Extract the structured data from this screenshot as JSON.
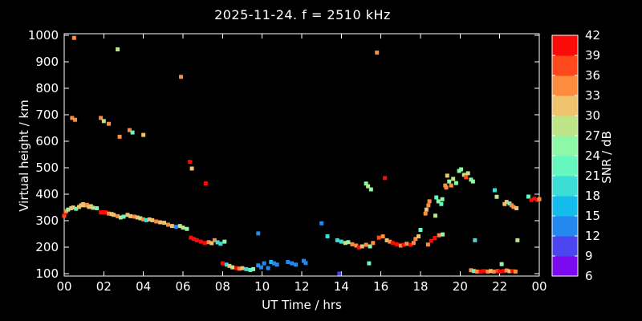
{
  "title": "2025-11-24. f = 2510 kHz",
  "palette": {
    "background": "#000000",
    "foreground": "#ffffff"
  },
  "chart_data": {
    "type": "scatter",
    "title": "2025-11-24. f = 2510 kHz",
    "xlabel": "UT Time / hrs",
    "ylabel": "Virtual height / km",
    "xlim": [
      0,
      24
    ],
    "ylim": [
      90,
      1005
    ],
    "grid": false,
    "x_ticks": [
      {
        "t": 0,
        "label": "00"
      },
      {
        "t": 2,
        "label": "02"
      },
      {
        "t": 4,
        "label": "04"
      },
      {
        "t": 6,
        "label": "06"
      },
      {
        "t": 8,
        "label": "08"
      },
      {
        "t": 10,
        "label": "10"
      },
      {
        "t": 12,
        "label": "12"
      },
      {
        "t": 14,
        "label": "14"
      },
      {
        "t": 16,
        "label": "16"
      },
      {
        "t": 18,
        "label": "18"
      },
      {
        "t": 20,
        "label": "20"
      },
      {
        "t": 22,
        "label": "22"
      },
      {
        "t": 24,
        "label": "00"
      }
    ],
    "y_ticks": [
      100,
      200,
      300,
      400,
      500,
      600,
      700,
      800,
      900,
      1000
    ],
    "colorbar": {
      "label": "SNR / dB",
      "ticks": [
        6,
        9,
        12,
        15,
        18,
        21,
        24,
        27,
        30,
        33,
        36,
        39,
        42
      ],
      "segment_colors": [
        "#7B0AF0",
        "#4B46F0",
        "#2388F0",
        "#13BCEC",
        "#3BDDD4",
        "#65F8BE",
        "#8DF8A7",
        "#BDE487",
        "#EFC26E",
        "#FE8C3F",
        "#FE491D",
        "#FB0B07"
      ],
      "position": "right"
    },
    "point_format": "[ut_hours, virtual_height_km, snr_db]",
    "points": [
      [
        0.0,
        318,
        37
      ],
      [
        0.05,
        330,
        40
      ],
      [
        0.1,
        336,
        34
      ],
      [
        0.2,
        342,
        25
      ],
      [
        0.35,
        347,
        31
      ],
      [
        0.45,
        350,
        31
      ],
      [
        0.6,
        345,
        22
      ],
      [
        0.75,
        352,
        31
      ],
      [
        0.85,
        358,
        31
      ],
      [
        0.95,
        362,
        31
      ],
      [
        1.05,
        358,
        31
      ],
      [
        1.15,
        360,
        34
      ],
      [
        1.25,
        352,
        31
      ],
      [
        1.35,
        355,
        31
      ],
      [
        1.45,
        349,
        28
      ],
      [
        1.65,
        347,
        25
      ],
      [
        1.85,
        332,
        40
      ],
      [
        1.95,
        332,
        40
      ],
      [
        2.1,
        332,
        40
      ],
      [
        2.25,
        327,
        34
      ],
      [
        2.4,
        325,
        31
      ],
      [
        2.5,
        322,
        31
      ],
      [
        2.7,
        317,
        34
      ],
      [
        2.85,
        312,
        28
      ],
      [
        3.0,
        315,
        22
      ],
      [
        3.2,
        322,
        31
      ],
      [
        3.35,
        317,
        31
      ],
      [
        3.55,
        315,
        34
      ],
      [
        3.7,
        312,
        31
      ],
      [
        3.85,
        309,
        28
      ],
      [
        4.0,
        305,
        34
      ],
      [
        4.15,
        302,
        19
      ],
      [
        4.3,
        305,
        31
      ],
      [
        4.45,
        302,
        31
      ],
      [
        4.65,
        297,
        34
      ],
      [
        4.85,
        294,
        31
      ],
      [
        5.05,
        292,
        31
      ],
      [
        5.25,
        285,
        34
      ],
      [
        5.45,
        280,
        31
      ],
      [
        5.65,
        277,
        13
      ],
      [
        5.85,
        280,
        28
      ],
      [
        6.0,
        274,
        28
      ],
      [
        6.2,
        269,
        25
      ],
      [
        6.4,
        236,
        40
      ],
      [
        6.55,
        231,
        40
      ],
      [
        6.7,
        226,
        40
      ],
      [
        6.9,
        221,
        40
      ],
      [
        7.1,
        216,
        40
      ],
      [
        7.3,
        219,
        34
      ],
      [
        7.45,
        215,
        31
      ],
      [
        7.6,
        226,
        34
      ],
      [
        7.75,
        218,
        19
      ],
      [
        7.9,
        213,
        19
      ],
      [
        8.1,
        221,
        25
      ],
      [
        0.4,
        688,
        34
      ],
      [
        0.55,
        681,
        34
      ],
      [
        1.85,
        688,
        34
      ],
      [
        2.0,
        676,
        28
      ],
      [
        2.25,
        666,
        34
      ],
      [
        2.8,
        617,
        34
      ],
      [
        3.3,
        642,
        34
      ],
      [
        3.45,
        633,
        22
      ],
      [
        4.0,
        624,
        31
      ],
      [
        6.35,
        522,
        40
      ],
      [
        6.45,
        497,
        31
      ],
      [
        7.15,
        441,
        40
      ],
      [
        0.5,
        990,
        34
      ],
      [
        2.7,
        947,
        28
      ],
      [
        5.9,
        843,
        34
      ],
      [
        15.8,
        935,
        34
      ],
      [
        8.0,
        139,
        40
      ],
      [
        8.2,
        134,
        19
      ],
      [
        8.35,
        129,
        31
      ],
      [
        8.5,
        124,
        28
      ],
      [
        8.7,
        121,
        40
      ],
      [
        8.85,
        119,
        34
      ],
      [
        9.0,
        121,
        31
      ],
      [
        9.2,
        117,
        19
      ],
      [
        9.4,
        114,
        22
      ],
      [
        9.55,
        117,
        25
      ],
      [
        9.8,
        131,
        13
      ],
      [
        9.95,
        124,
        13
      ],
      [
        10.1,
        139,
        13
      ],
      [
        10.3,
        121,
        13
      ],
      [
        10.45,
        144,
        16
      ],
      [
        10.6,
        139,
        13
      ],
      [
        10.75,
        134,
        13
      ],
      [
        11.3,
        144,
        13
      ],
      [
        11.5,
        139,
        13
      ],
      [
        11.7,
        134,
        13
      ],
      [
        12.1,
        148,
        13
      ],
      [
        12.2,
        140,
        13
      ],
      [
        9.8,
        252,
        13
      ],
      [
        13.0,
        290,
        13
      ],
      [
        13.3,
        241,
        19
      ],
      [
        13.9,
        100,
        10
      ],
      [
        15.4,
        139,
        22
      ],
      [
        16.2,
        461,
        40
      ],
      [
        20.75,
        226,
        19
      ],
      [
        22.9,
        226,
        28
      ],
      [
        22.1,
        136,
        25
      ],
      [
        13.8,
        226,
        19
      ],
      [
        14.0,
        221,
        19
      ],
      [
        14.2,
        216,
        28
      ],
      [
        14.35,
        219,
        25
      ],
      [
        14.55,
        211,
        34
      ],
      [
        14.75,
        206,
        34
      ],
      [
        14.9,
        199,
        40
      ],
      [
        15.05,
        203,
        31
      ],
      [
        15.25,
        209,
        34
      ],
      [
        15.45,
        203,
        25
      ],
      [
        15.6,
        216,
        34
      ],
      [
        15.9,
        236,
        37
      ],
      [
        16.1,
        241,
        34
      ],
      [
        16.3,
        226,
        31
      ],
      [
        16.45,
        221,
        34
      ],
      [
        16.6,
        216,
        40
      ],
      [
        16.8,
        211,
        40
      ],
      [
        17.0,
        206,
        34
      ],
      [
        17.15,
        209,
        40
      ],
      [
        17.3,
        213,
        34
      ],
      [
        17.5,
        209,
        40
      ],
      [
        17.65,
        216,
        34
      ],
      [
        17.75,
        231,
        34
      ],
      [
        17.9,
        241,
        31
      ],
      [
        18.0,
        265,
        22
      ],
      [
        18.38,
        210,
        34
      ],
      [
        18.54,
        224,
        40
      ],
      [
        18.72,
        235,
        40
      ],
      [
        18.94,
        245,
        34
      ],
      [
        19.12,
        248,
        25
      ],
      [
        18.25,
        327,
        34
      ],
      [
        18.3,
        342,
        31
      ],
      [
        18.4,
        358,
        34
      ],
      [
        18.45,
        373,
        34
      ],
      [
        18.75,
        319,
        28
      ],
      [
        18.8,
        388,
        22
      ],
      [
        18.9,
        373,
        25
      ],
      [
        19.05,
        363,
        22
      ],
      [
        19.1,
        381,
        25
      ],
      [
        19.25,
        433,
        34
      ],
      [
        19.3,
        425,
        34
      ],
      [
        19.35,
        470,
        31
      ],
      [
        19.45,
        448,
        25
      ],
      [
        19.55,
        433,
        34
      ],
      [
        19.65,
        458,
        28
      ],
      [
        19.8,
        442,
        25
      ],
      [
        19.95,
        488,
        25
      ],
      [
        20.05,
        494,
        25
      ],
      [
        20.2,
        473,
        28
      ],
      [
        20.3,
        464,
        37
      ],
      [
        20.4,
        479,
        28
      ],
      [
        20.55,
        455,
        25
      ],
      [
        20.65,
        448,
        25
      ],
      [
        15.25,
        440,
        25
      ],
      [
        15.35,
        430,
        28
      ],
      [
        15.5,
        418,
        25
      ],
      [
        21.75,
        415,
        19
      ],
      [
        21.85,
        390,
        28
      ],
      [
        22.25,
        363,
        31
      ],
      [
        22.35,
        371,
        31
      ],
      [
        22.5,
        365,
        22
      ],
      [
        22.6,
        358,
        34
      ],
      [
        22.7,
        352,
        34
      ],
      [
        22.85,
        347,
        31
      ],
      [
        23.45,
        391,
        22
      ],
      [
        23.6,
        378,
        40
      ],
      [
        23.75,
        383,
        40
      ],
      [
        23.9,
        378,
        40
      ],
      [
        24.0,
        381,
        34
      ],
      [
        20.55,
        113,
        34
      ],
      [
        20.7,
        110,
        22
      ],
      [
        20.85,
        108,
        34
      ],
      [
        21.05,
        108,
        40
      ],
      [
        21.2,
        110,
        40
      ],
      [
        21.4,
        108,
        34
      ],
      [
        21.55,
        110,
        31
      ],
      [
        21.7,
        108,
        34
      ],
      [
        21.9,
        110,
        37
      ],
      [
        22.0,
        108,
        40
      ],
      [
        22.2,
        110,
        40
      ],
      [
        22.35,
        112,
        34
      ],
      [
        22.5,
        109,
        31
      ],
      [
        22.65,
        110,
        40
      ],
      [
        22.8,
        108,
        34
      ]
    ]
  }
}
